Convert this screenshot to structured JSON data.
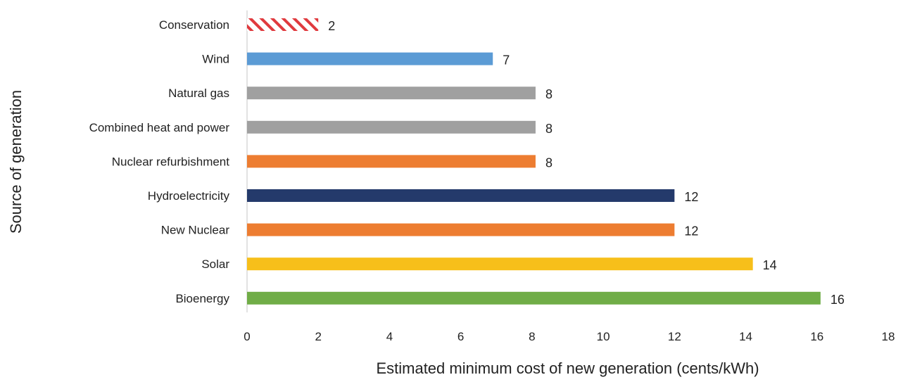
{
  "chart_data": {
    "type": "bar",
    "orientation": "horizontal",
    "title": "",
    "xlabel": "Estimated minimum cost of new generation (cents/kWh)",
    "ylabel": "Source of generation",
    "xlim": [
      0,
      18
    ],
    "xticks": [
      0,
      2,
      4,
      6,
      8,
      10,
      12,
      14,
      16,
      18
    ],
    "grid": false,
    "legend": "none",
    "categories": [
      "Conservation",
      "Wind",
      "Natural gas",
      "Combined heat and power",
      "Nuclear refurbishment",
      "Hydroelectricity",
      "New Nuclear",
      "Solar",
      "Bioenergy"
    ],
    "values": [
      2,
      7,
      8,
      8,
      8,
      12,
      12,
      14,
      16
    ],
    "bar_values": [
      2,
      6.9,
      8.1,
      8.1,
      8.1,
      12,
      12,
      14.2,
      16.1
    ],
    "value_labels": [
      "2",
      "7",
      "8",
      "8",
      "8",
      "12",
      "12",
      "14",
      "16"
    ],
    "colors": [
      "#e03a3e",
      "#5b9bd5",
      "#a0a0a0",
      "#a0a0a0",
      "#ed7d31",
      "#243a6b",
      "#ed7d31",
      "#f7bf1a",
      "#70ad47"
    ],
    "patterns": [
      "hatched",
      "solid",
      "solid",
      "solid",
      "solid",
      "solid",
      "solid",
      "solid",
      "solid"
    ]
  }
}
